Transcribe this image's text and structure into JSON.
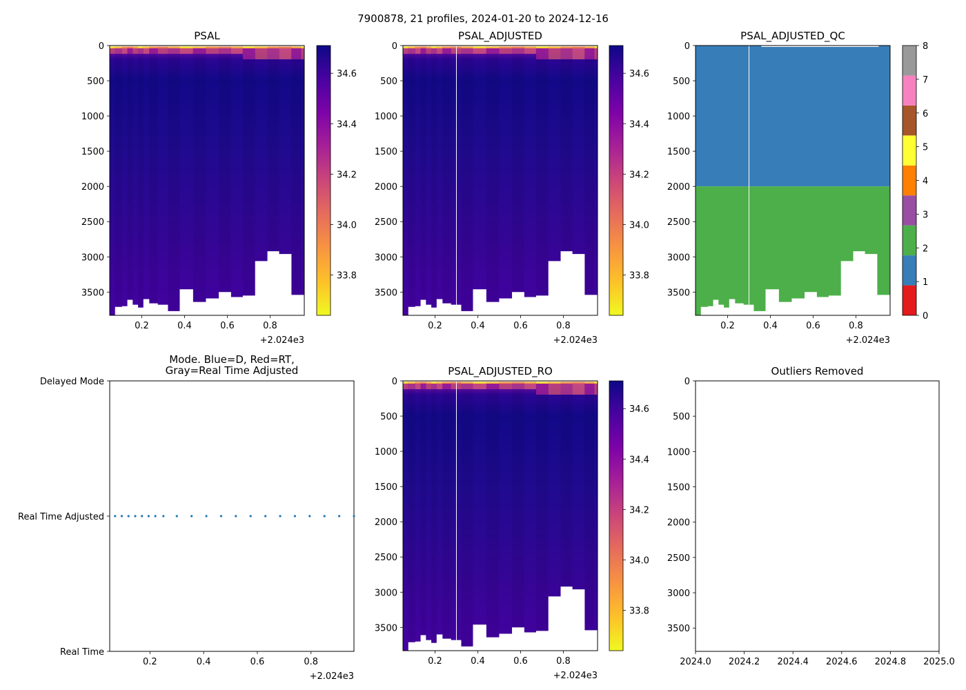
{
  "suptitle": "7900878, 21 profiles, 2024-01-20 to 2024-12-16",
  "chart_data": [
    {
      "id": "psal",
      "type": "heatmap",
      "title": "PSAL",
      "xlim": [
        0.05,
        0.96
      ],
      "ylim": [
        3830,
        0
      ],
      "x_ticks": [
        "0.2",
        "0.4",
        "0.6",
        "0.8"
      ],
      "x_tick_values": [
        0.2,
        0.4,
        0.6,
        0.8
      ],
      "x_offset_label": "+2.024e3",
      "y_ticks": [
        "0",
        "500",
        "1000",
        "1500",
        "2000",
        "2500",
        "3000",
        "3500"
      ],
      "y_tick_values": [
        0,
        500,
        1000,
        1500,
        2000,
        2500,
        3000,
        3500
      ],
      "colorbar": {
        "cmap": "plasma_r",
        "range": [
          33.64,
          34.71
        ],
        "ticks": [
          "33.8",
          "34.0",
          "34.2",
          "34.4",
          "34.6"
        ],
        "tick_values": [
          33.8,
          34.0,
          34.2,
          34.4,
          34.6
        ]
      },
      "profile_times": [
        0.055,
        0.095,
        0.12,
        0.145,
        0.17,
        0.195,
        0.22,
        0.25,
        0.3,
        0.345,
        0.41,
        0.47,
        0.53,
        0.59,
        0.645,
        0.7,
        0.76,
        0.815,
        0.87,
        0.93,
        0.96
      ],
      "profile_max_depth": [
        3830,
        3710,
        3700,
        3610,
        3680,
        3720,
        3600,
        3660,
        3680,
        3770,
        3460,
        3640,
        3590,
        3500,
        3570,
        3550,
        3060,
        2920,
        2960,
        3540,
        3540
      ]
    },
    {
      "id": "psal_adjusted",
      "type": "heatmap",
      "title": "PSAL_ADJUSTED",
      "xlim": [
        0.05,
        0.96
      ],
      "ylim": [
        3830,
        0
      ],
      "x_ticks": [
        "0.2",
        "0.4",
        "0.6",
        "0.8"
      ],
      "x_tick_values": [
        0.2,
        0.4,
        0.6,
        0.8
      ],
      "x_offset_label": "+2.024e3",
      "y_ticks": [
        "0",
        "500",
        "1000",
        "1500",
        "2000",
        "2500",
        "3000",
        "3500"
      ],
      "y_tick_values": [
        0,
        500,
        1000,
        1500,
        2000,
        2500,
        3000,
        3500
      ],
      "colorbar": {
        "cmap": "plasma_r",
        "range": [
          33.64,
          34.71
        ],
        "ticks": [
          "33.8",
          "34.0",
          "34.2",
          "34.4",
          "34.6"
        ],
        "tick_values": [
          33.8,
          34.0,
          34.2,
          34.4,
          34.6
        ]
      },
      "gap_at_time": 0.3
    },
    {
      "id": "psal_adjusted_qc",
      "type": "heatmap",
      "title": "PSAL_ADJUSTED_QC",
      "xlim": [
        0.05,
        0.96
      ],
      "ylim": [
        3830,
        0
      ],
      "x_ticks": [
        "0.2",
        "0.4",
        "0.6",
        "0.8"
      ],
      "x_tick_values": [
        0.2,
        0.4,
        0.6,
        0.8
      ],
      "x_offset_label": "+2.024e3",
      "y_ticks": [
        "0",
        "500",
        "1000",
        "1500",
        "2000",
        "2500",
        "3000",
        "3500"
      ],
      "y_tick_values": [
        0,
        500,
        1000,
        1500,
        2000,
        2500,
        3000,
        3500
      ],
      "qc_regions": [
        {
          "flag": 1,
          "depth_range": [
            0,
            2000
          ]
        },
        {
          "flag": 2,
          "depth_range": [
            2000,
            3830
          ]
        }
      ],
      "colorbar": {
        "type": "discrete",
        "range": [
          0,
          8
        ],
        "ticks": [
          "0",
          "1",
          "2",
          "3",
          "4",
          "5",
          "6",
          "7",
          "8"
        ],
        "colors": [
          "#e41a1c",
          "#377eb8",
          "#4daf4a",
          "#984ea3",
          "#ff7f00",
          "#ffff33",
          "#a65628",
          "#f781bf",
          "#999999"
        ]
      },
      "gap_at_time": 0.3
    },
    {
      "id": "mode",
      "type": "scatter",
      "title_lines": [
        "Mode. Blue=D, Red=RT,",
        "Gray=Real Time Adjusted"
      ],
      "xlim": [
        0.05,
        0.96
      ],
      "x_ticks": [
        "0.2",
        "0.4",
        "0.6",
        "0.8"
      ],
      "x_tick_values": [
        0.2,
        0.4,
        0.6,
        0.8
      ],
      "x_offset_label": "+2.024e3",
      "y_categories": [
        "Real Time",
        "Real Time Adjusted",
        "Delayed Mode"
      ],
      "point_color": "#1f77b4",
      "x": [
        0.07,
        0.095,
        0.12,
        0.145,
        0.17,
        0.195,
        0.22,
        0.25,
        0.3,
        0.355,
        0.41,
        0.465,
        0.52,
        0.575,
        0.63,
        0.685,
        0.74,
        0.795,
        0.85,
        0.905,
        0.96
      ],
      "y": [
        "Real Time Adjusted",
        "Real Time Adjusted",
        "Real Time Adjusted",
        "Real Time Adjusted",
        "Real Time Adjusted",
        "Real Time Adjusted",
        "Real Time Adjusted",
        "Real Time Adjusted",
        "Real Time Adjusted",
        "Real Time Adjusted",
        "Real Time Adjusted",
        "Real Time Adjusted",
        "Real Time Adjusted",
        "Real Time Adjusted",
        "Real Time Adjusted",
        "Real Time Adjusted",
        "Real Time Adjusted",
        "Real Time Adjusted",
        "Real Time Adjusted",
        "Real Time Adjusted",
        "Real Time Adjusted"
      ]
    },
    {
      "id": "psal_adjusted_ro",
      "type": "heatmap",
      "title": "PSAL_ADJUSTED_RO",
      "xlim": [
        0.05,
        0.96
      ],
      "ylim": [
        3830,
        0
      ],
      "x_ticks": [
        "0.2",
        "0.4",
        "0.6",
        "0.8"
      ],
      "x_tick_values": [
        0.2,
        0.4,
        0.6,
        0.8
      ],
      "x_offset_label": "+2.024e3",
      "y_ticks": [
        "0",
        "500",
        "1000",
        "1500",
        "2000",
        "2500",
        "3000",
        "3500"
      ],
      "y_tick_values": [
        0,
        500,
        1000,
        1500,
        2000,
        2500,
        3000,
        3500
      ],
      "colorbar": {
        "cmap": "plasma_r",
        "range": [
          33.64,
          34.71
        ],
        "ticks": [
          "33.8",
          "34.0",
          "34.2",
          "34.4",
          "34.6"
        ],
        "tick_values": [
          33.8,
          34.0,
          34.2,
          34.4,
          34.6
        ]
      },
      "gap_at_time": 0.3
    },
    {
      "id": "outliers",
      "type": "scatter",
      "title": "Outliers Removed",
      "xlim": [
        2024.0,
        2025.0
      ],
      "ylim": [
        3830,
        0
      ],
      "x_ticks": [
        "2024.0",
        "2024.2",
        "2024.4",
        "2024.6",
        "2024.8",
        "2025.0"
      ],
      "x_tick_values": [
        2024.0,
        2024.2,
        2024.4,
        2024.6,
        2024.8,
        2025.0
      ],
      "y_ticks": [
        "0",
        "500",
        "1000",
        "1500",
        "2000",
        "2500",
        "3000",
        "3500"
      ],
      "y_tick_values": [
        0,
        500,
        1000,
        1500,
        2000,
        2500,
        3000,
        3500
      ],
      "x": [],
      "y": []
    }
  ]
}
